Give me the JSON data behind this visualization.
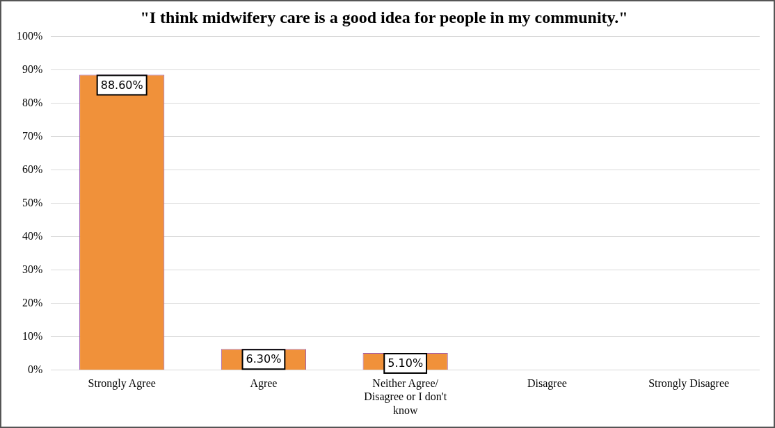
{
  "chart_data": {
    "type": "bar",
    "title": "\"I think midwifery care is a good idea for people in my community.\"",
    "categories": [
      "Strongly Agree",
      "Agree",
      "Neither Agree/ Disagree or I don't know",
      "Disagree",
      "Strongly Disagree"
    ],
    "values": [
      88.6,
      6.3,
      5.1,
      0,
      0
    ],
    "value_labels": [
      "88.60%",
      "6.30%",
      "5.10%",
      null,
      null
    ],
    "color": "#f0913a",
    "ylim": [
      0,
      100
    ],
    "yticks": [
      {
        "value": 0,
        "label": "0%"
      },
      {
        "value": 10,
        "label": "10%"
      },
      {
        "value": 20,
        "label": "20%"
      },
      {
        "value": 30,
        "label": "30%"
      },
      {
        "value": 40,
        "label": "40%"
      },
      {
        "value": 50,
        "label": "50%"
      },
      {
        "value": 60,
        "label": "60%"
      },
      {
        "value": 70,
        "label": "70%"
      },
      {
        "value": 80,
        "label": "80%"
      },
      {
        "value": 90,
        "label": "90%"
      },
      {
        "value": 100,
        "label": "100%"
      }
    ],
    "grid": "y",
    "legend": false
  }
}
